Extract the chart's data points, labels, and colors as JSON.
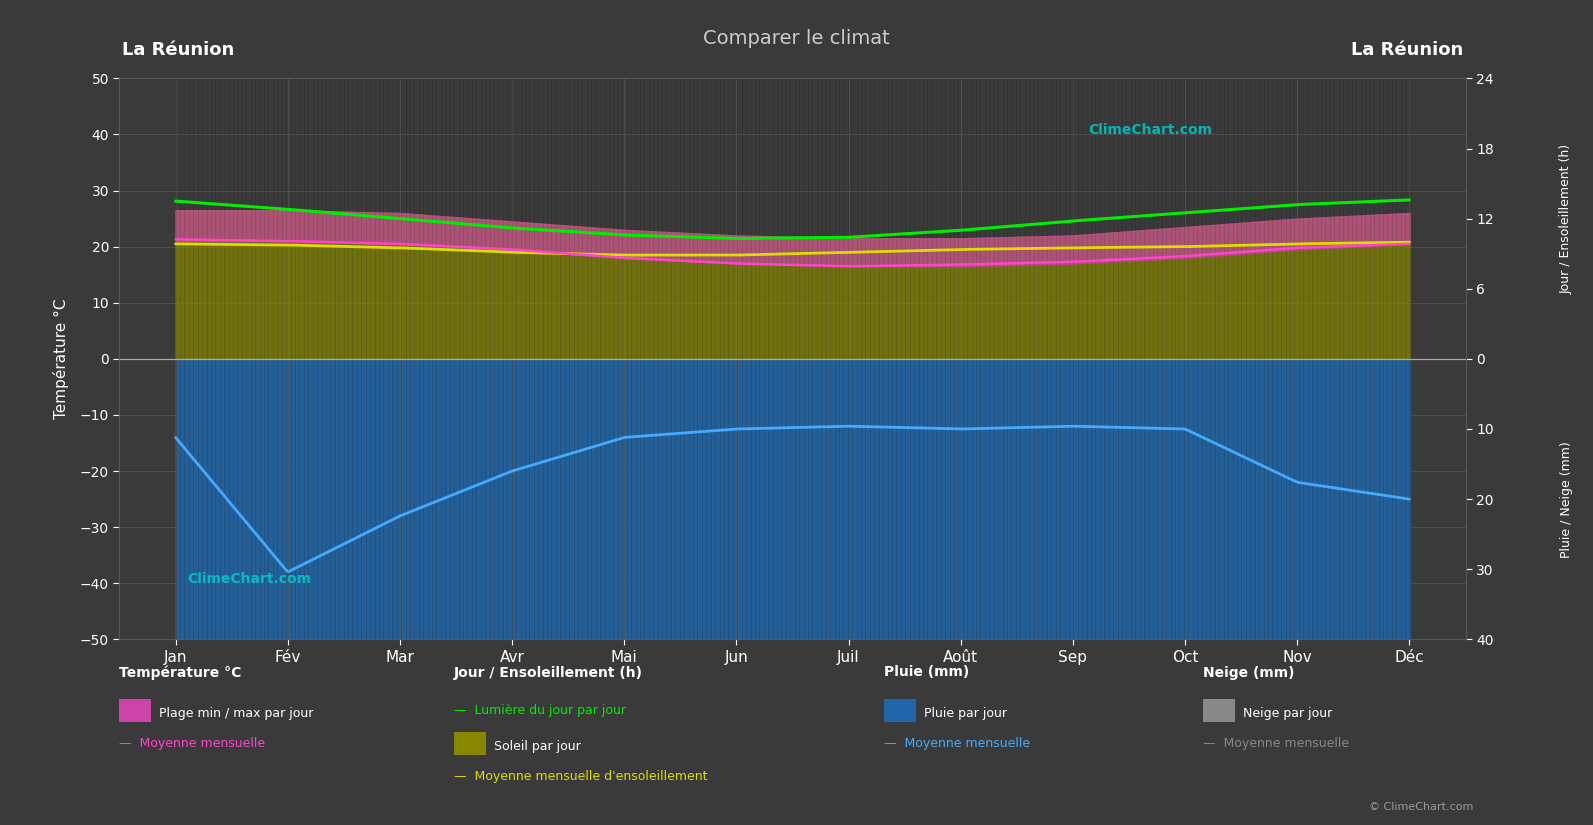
{
  "title": "Comparer le climat",
  "location_left": "La Réunion",
  "location_right": "La Réunion",
  "bg_color": "#3a3a3a",
  "plot_bg_color": "#3a3a3a",
  "grid_color": "#585858",
  "months": [
    "Jan",
    "Fév",
    "Mar",
    "Avr",
    "Mai",
    "Jun",
    "Juil",
    "Août",
    "Sep",
    "Oct",
    "Nov",
    "Déc"
  ],
  "temp_ylim_lo": -50,
  "temp_ylim_hi": 50,
  "temp_max_daily": [
    26.5,
    26.5,
    26.0,
    24.5,
    23.0,
    22.0,
    21.5,
    21.5,
    22.0,
    23.5,
    25.0,
    26.0
  ],
  "temp_min_daily": [
    21.0,
    21.0,
    20.5,
    19.5,
    18.0,
    17.0,
    16.5,
    16.5,
    17.0,
    18.0,
    19.5,
    20.5
  ],
  "temp_mean_monthly": [
    21.3,
    21.0,
    20.5,
    19.5,
    18.0,
    17.0,
    16.5,
    16.8,
    17.3,
    18.3,
    19.8,
    20.5
  ],
  "daylight_hours": [
    13.5,
    12.8,
    12.0,
    11.2,
    10.6,
    10.3,
    10.4,
    11.0,
    11.8,
    12.5,
    13.2,
    13.6
  ],
  "sunshine_mean_monthly": [
    20.5,
    20.3,
    19.8,
    19.0,
    18.5,
    18.5,
    19.0,
    19.5,
    19.8,
    20.0,
    20.5,
    20.8
  ],
  "rain_mean_neg": [
    -14.0,
    -38.0,
    -28.0,
    -20.0,
    -14.0,
    -12.5,
    -12.0,
    -12.5,
    -12.0,
    -12.5,
    -22.0,
    -25.0
  ],
  "temp_band_color": "#cc44aa",
  "temp_band_alpha": 0.65,
  "sunshine_band_color": "#888800",
  "sunshine_band_alpha": 0.7,
  "rain_bar_color": "#2266aa",
  "rain_bar_alpha": 0.85,
  "daylight_line_color": "#00ee00",
  "sunshine_mean_line_color": "#dddd00",
  "temp_mean_line_color": "#ff44cc",
  "rain_mean_line_color": "#44aaff",
  "text_color": "#ffffff",
  "watermark_color": "#00cccc",
  "copyright_color": "#999999",
  "title_color": "#cccccc",
  "stripe_color_top": "#000000",
  "stripe_color_bot": "#001133",
  "sun_scale_factor": 2.0833,
  "rain_scale_factor": 1.25
}
